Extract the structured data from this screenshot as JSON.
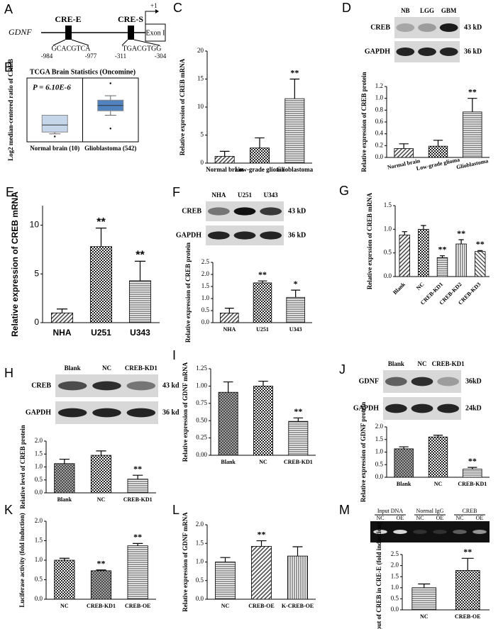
{
  "diagram": {
    "panel": "A",
    "gene": "GDNF",
    "elements": [
      "CRE-E",
      "CRE-S"
    ],
    "tss": "+1",
    "exon": "Exon I",
    "sequences": [
      {
        "text": "GCACGTCA",
        "start": "-984",
        "end": "-977"
      },
      {
        "text": "TGACGTGG",
        "start": "-311",
        "end": "-304"
      }
    ]
  },
  "chart_data": [
    {
      "panel": "B",
      "type": "box",
      "title": "TCGA Brain Statistics (Oncomine)",
      "annotation": "P = 6.10E-6",
      "ylabel": "Log2 median-centered ratio of CREB",
      "categories": [
        "Normal brain (10)",
        "Glioblastoma (542)"
      ],
      "boxes": [
        {
          "low": 0.45,
          "q1": 0.55,
          "median": 0.95,
          "q3": 1.5,
          "high": 1.5,
          "outliers": [
            0.3
          ]
        },
        {
          "low": 1.5,
          "q1": 1.75,
          "median": 2.05,
          "q3": 2.35,
          "high": 2.6,
          "outliers": [
            3.3,
            0.75
          ]
        }
      ],
      "colors": [
        "#c6d6ea",
        "#4f82bf"
      ],
      "ylim": [
        0,
        3.6
      ]
    },
    {
      "panel": "C",
      "type": "bar",
      "ylabel": "Relative exprssion of CREB mRNA",
      "categories": [
        "Normal brain",
        "Low-grade glioma",
        "Glioblastoma"
      ],
      "values": [
        1.2,
        2.7,
        11.5
      ],
      "errors": [
        0.9,
        1.8,
        3.5
      ],
      "annotations": [
        null,
        null,
        "**"
      ],
      "ylim": [
        0,
        20
      ],
      "yticks": [
        0,
        5,
        10,
        15,
        20
      ]
    },
    {
      "panel": "D",
      "type": "bar",
      "ylabel": "Relative expression of CREB protein",
      "categories": [
        "Normal brain",
        "Low-grade glioma",
        "Glioblastoma"
      ],
      "values": [
        0.15,
        0.19,
        0.77
      ],
      "errors": [
        0.08,
        0.1,
        0.23
      ],
      "annotations": [
        null,
        null,
        "**"
      ],
      "ylim": [
        0,
        1.2
      ],
      "yticks": [
        {
          "value": 0,
          "label": "0.0"
        },
        0.2,
        0.4,
        0.6,
        0.8,
        {
          "value": 1,
          "label": "1.0"
        },
        1.2
      ],
      "blot": {
        "lanes": [
          "NB",
          "LGG",
          "GBM"
        ],
        "rows": [
          {
            "name": "CREB",
            "size": "43 kD"
          },
          {
            "name": "GAPDH",
            "size": "36 kD"
          }
        ]
      }
    },
    {
      "panel": "E",
      "type": "bar",
      "ylabel": "Relative expression of CREB mRNA",
      "categories": [
        "NHA",
        "U251",
        "U343"
      ],
      "values": [
        1.0,
        7.8,
        4.3
      ],
      "errors": [
        0.4,
        1.9,
        2.0
      ],
      "annotations": [
        null,
        "**",
        "**"
      ],
      "ylim": [
        0,
        12
      ],
      "yticks": [
        0,
        5,
        10
      ]
    },
    {
      "panel": "F",
      "type": "bar",
      "ylabel": "Relative expression of CREB protein",
      "categories": [
        "NHA",
        "U251",
        "U343"
      ],
      "values": [
        0.4,
        1.65,
        1.05
      ],
      "errors": [
        0.2,
        0.08,
        0.3
      ],
      "annotations": [
        null,
        "**",
        "*"
      ],
      "ylim": [
        0,
        2.5
      ],
      "yticks": [
        {
          "value": 0,
          "label": "0.0"
        },
        0.5,
        {
          "value": 1,
          "label": "1.0"
        },
        1.5,
        {
          "value": 2,
          "label": "2.0"
        },
        2.5
      ],
      "blot": {
        "lanes": [
          "NHA",
          "U251",
          "U343"
        ],
        "rows": [
          {
            "name": "CREB",
            "size": "43 kD"
          },
          {
            "name": "GAPDH",
            "size": "36 kD"
          }
        ]
      }
    },
    {
      "panel": "G",
      "type": "bar",
      "ylabel": "Relative exprssion of CREB mRNA",
      "categories": [
        "Blank",
        "NC",
        "CREB-KD1",
        "CREB-KD2",
        "CREB-KD3"
      ],
      "values": [
        0.88,
        1.0,
        0.4,
        0.69,
        0.53
      ],
      "errors": [
        0.07,
        0.08,
        0.04,
        0.09,
        0.02
      ],
      "annotations": [
        null,
        null,
        "**",
        "**",
        "**"
      ],
      "ylim": [
        0,
        1.5
      ],
      "yticks": [
        {
          "value": 0,
          "label": "0.0"
        },
        0.5,
        {
          "value": 1,
          "label": "1.0"
        },
        1.5
      ]
    },
    {
      "panel": "H",
      "type": "bar",
      "ylabel": "Relative level of CREB protein",
      "categories": [
        "Blank",
        "NC",
        "CREB-KD1"
      ],
      "values": [
        1.13,
        1.45,
        0.53
      ],
      "errors": [
        0.17,
        0.17,
        0.15
      ],
      "annotations": [
        null,
        null,
        "**"
      ],
      "ylim": [
        0,
        2
      ],
      "yticks": [
        {
          "value": 0,
          "label": "0.0"
        },
        0.5,
        {
          "value": 1,
          "label": "1.0"
        },
        1.5,
        {
          "value": 2,
          "label": "2.0"
        }
      ],
      "blot": {
        "lanes": [
          "Blank",
          "NC",
          "CREB-KD1"
        ],
        "rows": [
          {
            "name": "CREB",
            "size": "43 kd"
          },
          {
            "name": "GAPDH",
            "size": "36 kd"
          }
        ]
      }
    },
    {
      "panel": "I",
      "type": "bar",
      "ylabel": "Relative expression of GDNF mRNA",
      "categories": [
        "Blank",
        "NC",
        "CREB-KD1"
      ],
      "values": [
        0.91,
        1.0,
        0.49
      ],
      "errors": [
        0.15,
        0.07,
        0.05
      ],
      "annotations": [
        null,
        null,
        "**"
      ],
      "ylim": [
        0,
        1.25
      ],
      "yticks": [
        {
          "value": 0,
          "label": "0.00"
        },
        0.25,
        {
          "value": 0.5,
          "label": "0.50"
        },
        0.75,
        {
          "value": 1,
          "label": "1.00"
        },
        1.25
      ]
    },
    {
      "panel": "J",
      "type": "bar",
      "ylabel": "Relative expression of GDNF protein",
      "categories": [
        "Blank",
        "NC",
        "CREB-KD1"
      ],
      "values": [
        1.13,
        1.6,
        0.32
      ],
      "errors": [
        0.08,
        0.07,
        0.07
      ],
      "annotations": [
        null,
        null,
        "**"
      ],
      "ylim": [
        0,
        2
      ],
      "yticks": [
        {
          "value": 0,
          "label": "0.0"
        },
        0.5,
        {
          "value": 1,
          "label": "1.0"
        },
        1.5,
        {
          "value": 2,
          "label": "2.0"
        }
      ],
      "blot": {
        "lanes": [
          "Blank",
          "NC",
          "CREB-KD1"
        ],
        "rows": [
          {
            "name": "GDNF",
            "size": "36kD"
          },
          {
            "name": "GAPDH",
            "size": "24kD"
          }
        ]
      }
    },
    {
      "panel": "K",
      "type": "bar",
      "ylabel": "Luciferase activity (fold induction)",
      "categories": [
        "NC",
        "CREB-KD1",
        "CREB-OE"
      ],
      "values": [
        1.0,
        0.73,
        1.37
      ],
      "errors": [
        0.05,
        0.02,
        0.06
      ],
      "annotations": [
        null,
        "**",
        "**"
      ],
      "ylim": [
        0,
        2
      ],
      "yticks": [
        {
          "value": 0,
          "label": "0.0"
        },
        0.5,
        {
          "value": 1,
          "label": "1.0"
        },
        1.5,
        {
          "value": 2,
          "label": "2.0"
        }
      ]
    },
    {
      "panel": "L",
      "type": "bar",
      "ylabel": "Relative expression of GDNF mRNA",
      "categories": [
        "NC",
        "CREB-OE",
        "K-CREB-OE"
      ],
      "values": [
        1.0,
        1.42,
        1.16
      ],
      "errors": [
        0.12,
        0.15,
        0.25
      ],
      "annotations": [
        null,
        "**",
        null
      ],
      "ylim": [
        0,
        2
      ],
      "yticks": [
        {
          "value": 0,
          "label": "0.0"
        },
        0.5,
        {
          "value": 1,
          "label": "1.0"
        },
        1.5,
        {
          "value": 2,
          "label": "2.0"
        }
      ]
    },
    {
      "panel": "M",
      "type": "bar",
      "ylabel": "%input of CREB in CRE-E (fold induction)",
      "categories": [
        "NC",
        "CREB-OE"
      ],
      "values": [
        1.0,
        1.78
      ],
      "errors": [
        0.17,
        0.55
      ],
      "annotations": [
        null,
        "**"
      ],
      "ylim": [
        0,
        2.5
      ],
      "yticks": [
        {
          "value": 0,
          "label": "0.0"
        },
        0.5,
        {
          "value": 1,
          "label": "1.0"
        },
        1.5,
        {
          "value": 2,
          "label": "2.0"
        },
        2.5
      ],
      "gel": {
        "groups": [
          {
            "name": "Input DNA",
            "lanes": [
              "NC",
              "OE"
            ]
          },
          {
            "name": "Normal IgG",
            "lanes": [
              "NC",
              "OE"
            ]
          },
          {
            "name": "CREB",
            "lanes": [
              "NC",
              "OE"
            ]
          }
        ]
      }
    }
  ]
}
